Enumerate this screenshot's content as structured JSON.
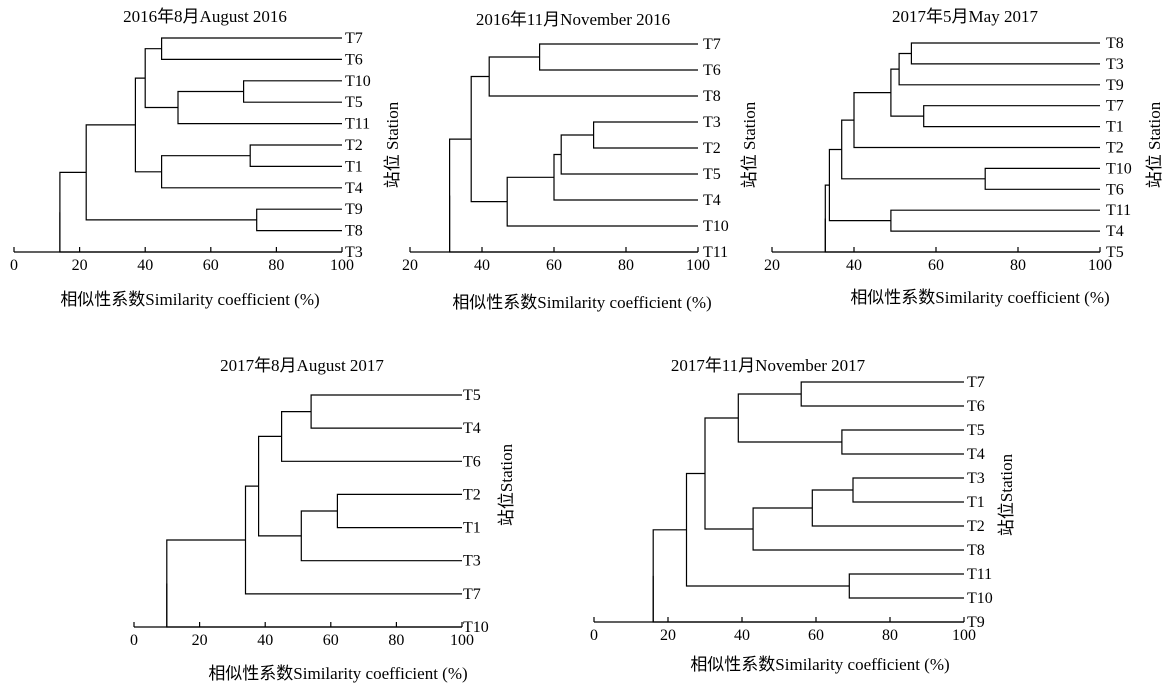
{
  "chart_data": [
    {
      "type": "dendrogram",
      "title": "2016年8月August 2016",
      "xlabel": "相似性系数Similarity coefficient (%)",
      "ylabel": "站位 Station",
      "xlim": [
        0,
        100
      ],
      "xticks": [
        "0",
        "20",
        "40",
        "60",
        "80",
        "100"
      ],
      "leaves": [
        "T7",
        "T6",
        "T10",
        "T5",
        "T11",
        "T2",
        "T1",
        "T4",
        "T9",
        "T8",
        "T3"
      ],
      "merges": [
        {
          "a": "L:T7",
          "b": "L:T6",
          "x": 45
        },
        {
          "a": "L:T10",
          "b": "L:T5",
          "x": 70
        },
        {
          "a": "N:1",
          "b": "L:T11",
          "x": 50
        },
        {
          "a": "N:0",
          "b": "N:2",
          "x": 40
        },
        {
          "a": "L:T2",
          "b": "L:T1",
          "x": 72
        },
        {
          "a": "N:4",
          "b": "L:T4",
          "x": 45
        },
        {
          "a": "N:3",
          "b": "N:5",
          "x": 37
        },
        {
          "a": "L:T9",
          "b": "L:T8",
          "x": 74
        },
        {
          "a": "N:6",
          "b": "N:7",
          "x": 22
        },
        {
          "a": "N:8",
          "b": "L:T3",
          "x": 14
        }
      ]
    },
    {
      "type": "dendrogram",
      "title": "2016年11月November 2016",
      "xlabel": "相似性系数Similarity coefficient (%)",
      "ylabel": "站位 Station",
      "xlim": [
        20,
        100
      ],
      "xticks": [
        "20",
        "40",
        "60",
        "80",
        "100"
      ],
      "leaves": [
        "T7",
        "T6",
        "T8",
        "T3",
        "T2",
        "T5",
        "T4",
        "T10",
        "T11"
      ],
      "merges": [
        {
          "a": "L:T7",
          "b": "L:T6",
          "x": 56
        },
        {
          "a": "N:0",
          "b": "L:T8",
          "x": 42
        },
        {
          "a": "L:T3",
          "b": "L:T2",
          "x": 71
        },
        {
          "a": "N:2",
          "b": "L:T5",
          "x": 62
        },
        {
          "a": "N:3",
          "b": "L:T4",
          "x": 60
        },
        {
          "a": "N:4",
          "b": "L:T10",
          "x": 47
        },
        {
          "a": "N:1",
          "b": "N:5",
          "x": 37
        },
        {
          "a": "N:6",
          "b": "L:T11",
          "x": 31
        }
      ]
    },
    {
      "type": "dendrogram",
      "title": "2017年5月May 2017",
      "xlabel": "相似性系数Similarity coefficient (%)",
      "ylabel": "站位 Station",
      "xlim": [
        20,
        100
      ],
      "xticks": [
        "20",
        "40",
        "60",
        "80",
        "100"
      ],
      "leaves": [
        "T8",
        "T3",
        "T9",
        "T7",
        "T1",
        "T2",
        "T10",
        "T6",
        "T11",
        "T4",
        "T5"
      ],
      "merges": [
        {
          "a": "L:T8",
          "b": "L:T3",
          "x": 54
        },
        {
          "a": "N:0",
          "b": "L:T9",
          "x": 51
        },
        {
          "a": "L:T7",
          "b": "L:T1",
          "x": 57
        },
        {
          "a": "N:1",
          "b": "N:2",
          "x": 49
        },
        {
          "a": "N:3",
          "b": "L:T2",
          "x": 40
        },
        {
          "a": "L:T10",
          "b": "L:T6",
          "x": 72
        },
        {
          "a": "N:4",
          "b": "N:5",
          "x": 37
        },
        {
          "a": "L:T11",
          "b": "L:T4",
          "x": 49
        },
        {
          "a": "N:6",
          "b": "N:7",
          "x": 34
        },
        {
          "a": "N:8",
          "b": "L:T5",
          "x": 33
        }
      ]
    },
    {
      "type": "dendrogram",
      "title": "2017年8月August 2017",
      "xlabel": "相似性系数Similarity coefficient (%)",
      "ylabel": "站位Station",
      "xlim": [
        0,
        100
      ],
      "xticks": [
        "0",
        "20",
        "40",
        "60",
        "80",
        "100"
      ],
      "leaves": [
        "T5",
        "T4",
        "T6",
        "T2",
        "T1",
        "T3",
        "T7",
        "T10"
      ],
      "merges": [
        {
          "a": "L:T5",
          "b": "L:T4",
          "x": 54
        },
        {
          "a": "N:0",
          "b": "L:T6",
          "x": 45
        },
        {
          "a": "L:T2",
          "b": "L:T1",
          "x": 62
        },
        {
          "a": "N:2",
          "b": "L:T3",
          "x": 51
        },
        {
          "a": "N:1",
          "b": "N:3",
          "x": 38
        },
        {
          "a": "N:4",
          "b": "L:T7",
          "x": 34
        },
        {
          "a": "N:5",
          "b": "L:T10",
          "x": 10
        }
      ]
    },
    {
      "type": "dendrogram",
      "title": "2017年11月November 2017",
      "xlabel": "相似性系数Similarity coefficient (%)",
      "ylabel": "站位Station",
      "xlim": [
        0,
        100
      ],
      "xticks": [
        "0",
        "20",
        "40",
        "60",
        "80",
        "100"
      ],
      "leaves": [
        "T7",
        "T6",
        "T5",
        "T4",
        "T3",
        "T1",
        "T2",
        "T8",
        "T11",
        "T10",
        "T9"
      ],
      "merges": [
        {
          "a": "L:T7",
          "b": "L:T6",
          "x": 56
        },
        {
          "a": "L:T5",
          "b": "L:T4",
          "x": 67
        },
        {
          "a": "N:0",
          "b": "N:1",
          "x": 39
        },
        {
          "a": "L:T3",
          "b": "L:T1",
          "x": 70
        },
        {
          "a": "N:3",
          "b": "L:T2",
          "x": 59
        },
        {
          "a": "N:4",
          "b": "L:T8",
          "x": 43
        },
        {
          "a": "N:2",
          "b": "N:5",
          "x": 30
        },
        {
          "a": "L:T11",
          "b": "L:T10",
          "x": 69
        },
        {
          "a": "N:6",
          "b": "N:7",
          "x": 25
        },
        {
          "a": "N:8",
          "b": "L:T9",
          "x": 16
        }
      ]
    }
  ]
}
